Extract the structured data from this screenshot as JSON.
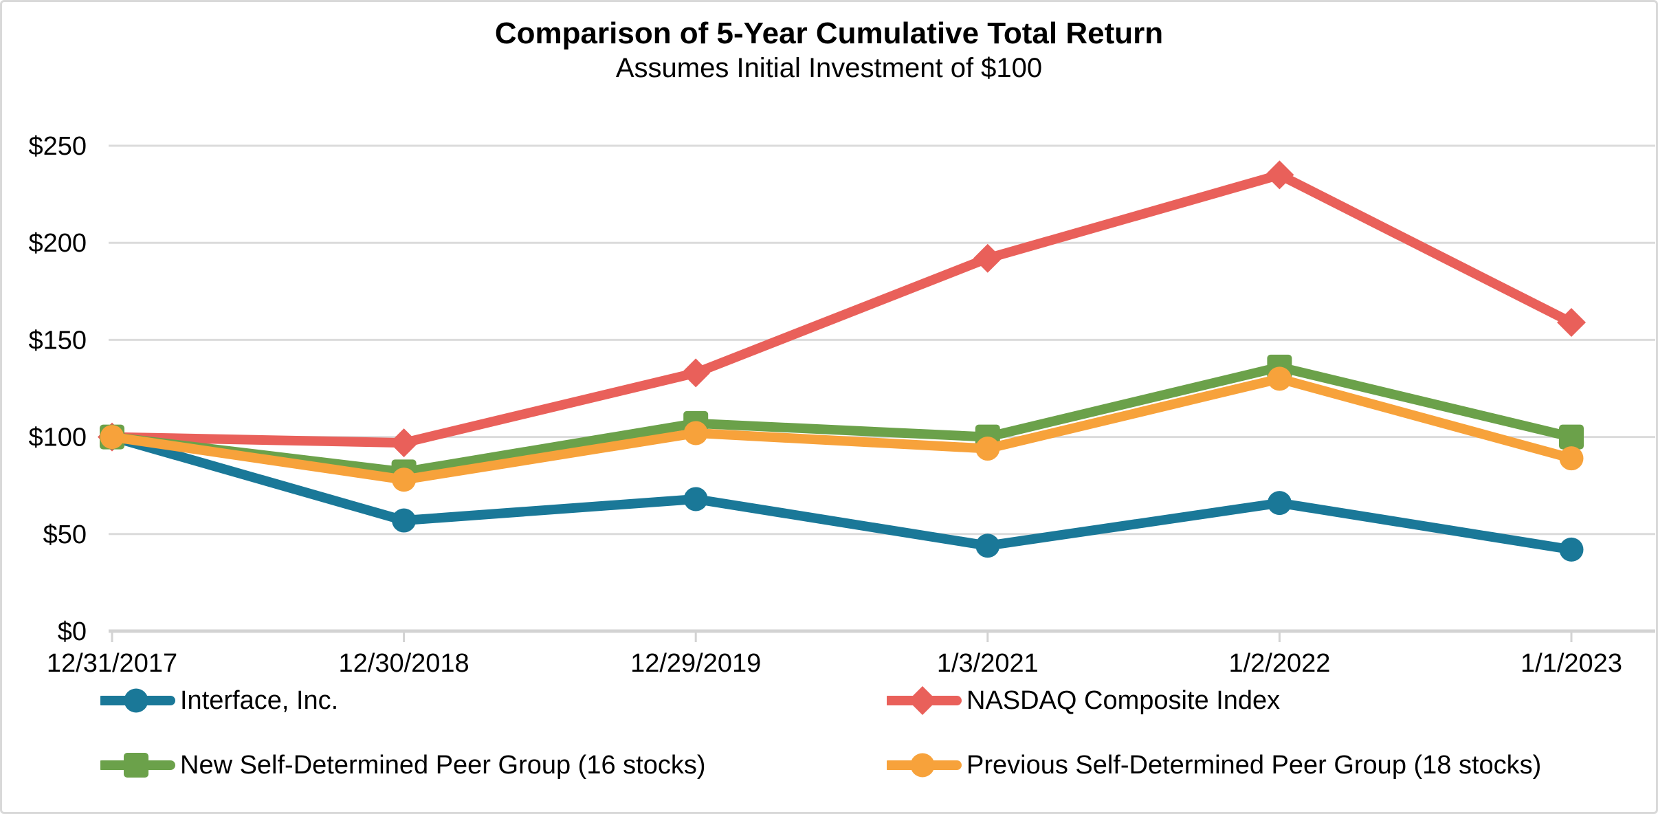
{
  "title": "Comparison of 5-Year Cumulative Total Return",
  "subtitle": "Assumes Initial Investment of $100",
  "chart_data": {
    "type": "line",
    "categories": [
      "12/31/2017",
      "12/30/2018",
      "12/29/2019",
      "1/3/2021",
      "1/2/2022",
      "1/1/2023"
    ],
    "series": [
      {
        "name": "Interface, Inc.",
        "marker": "circle",
        "color": "#1A7898",
        "values": [
          100,
          57,
          68,
          44,
          66,
          42
        ]
      },
      {
        "name": "NASDAQ Composite Index",
        "marker": "diamond",
        "color": "#E9605A",
        "values": [
          100,
          97,
          133,
          192,
          235,
          159
        ]
      },
      {
        "name": "New Self-Determined Peer Group (16 stocks)",
        "marker": "square",
        "color": "#6BA14A",
        "values": [
          100,
          82,
          107,
          100,
          136,
          100
        ]
      },
      {
        "name": "Previous Self-Determined Peer Group (18 stocks)",
        "marker": "circle",
        "color": "#F7A23B",
        "values": [
          100,
          78,
          102,
          94,
          130,
          89
        ]
      }
    ],
    "y_ticks": [
      "$0",
      "$50",
      "$100",
      "$150",
      "$200",
      "$250"
    ],
    "y_tick_values": [
      0,
      50,
      100,
      150,
      200,
      250
    ],
    "ylim": [
      0,
      250
    ],
    "xlabel": "",
    "ylabel": "",
    "grid": true,
    "legend_position": "bottom",
    "colors": {
      "gridline": "#DBDBDB",
      "axis": "#D3D3D3",
      "text": "#000000",
      "frame_border": "#D9D9D9",
      "background": "#FFFFFF"
    }
  }
}
